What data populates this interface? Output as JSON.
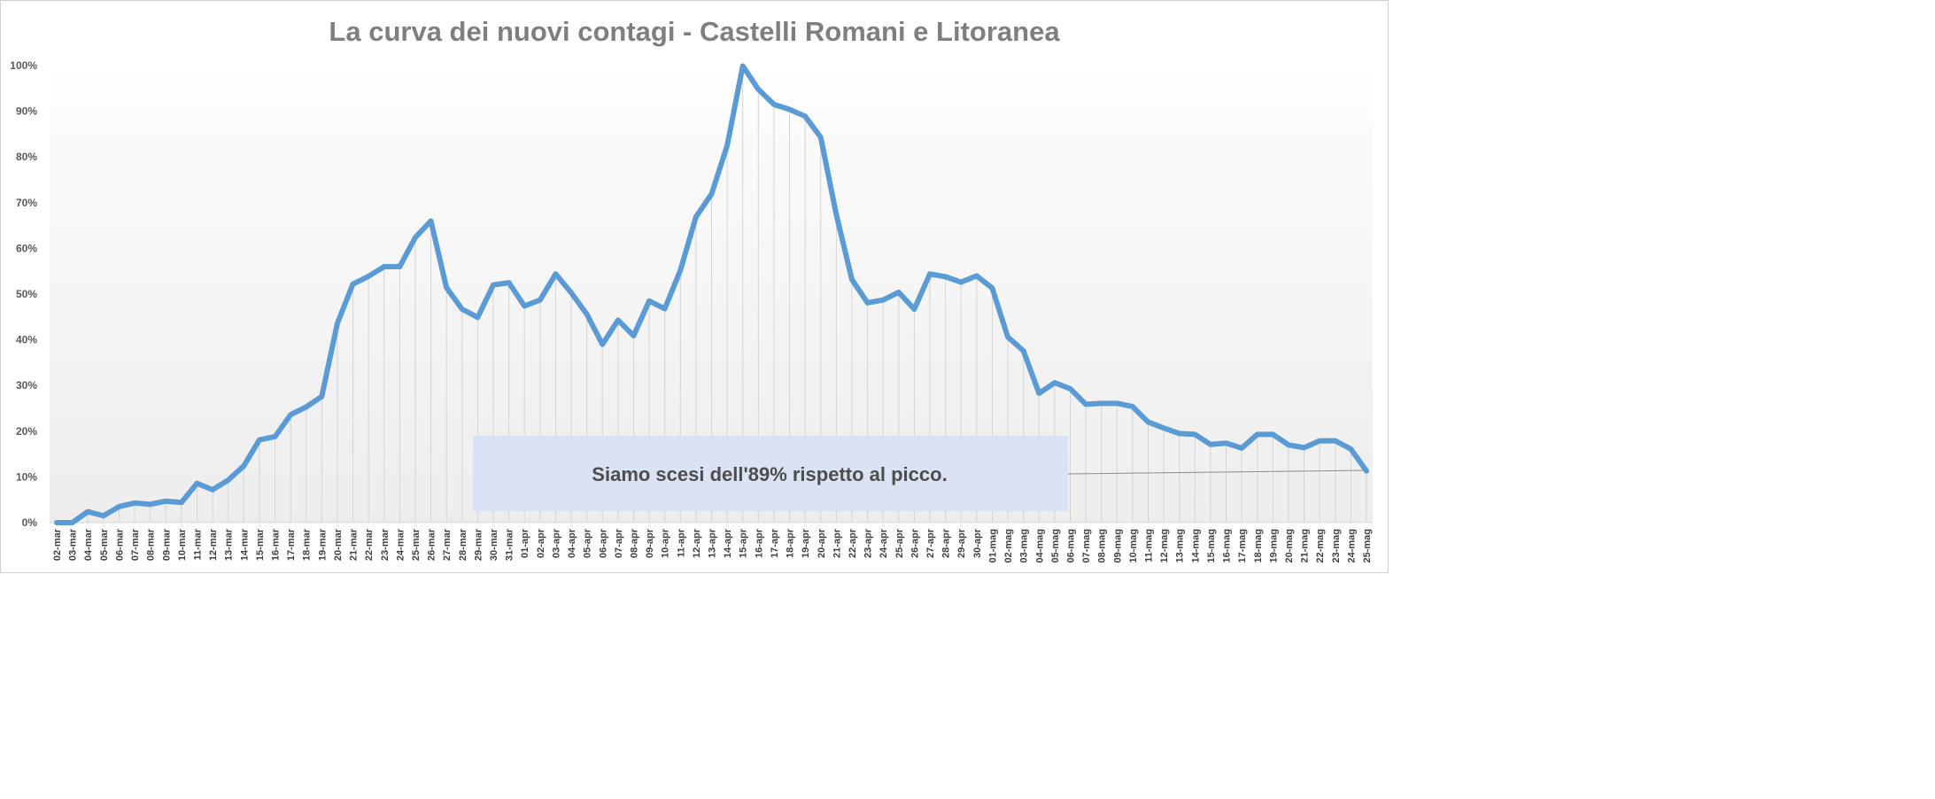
{
  "chart_data": {
    "type": "line",
    "title": "La curva dei nuovi contagi - Castelli Romani e Litoranea",
    "xlabel": "",
    "ylabel": "",
    "ylim": [
      0,
      100
    ],
    "yticks": [
      "0%",
      "10%",
      "20%",
      "30%",
      "40%",
      "50%",
      "60%",
      "70%",
      "80%",
      "90%",
      "100%"
    ],
    "grid": "vertical drop lines",
    "legend": "none",
    "line_color": "#5B9BD5",
    "categories": [
      "02-mar",
      "03-mar",
      "04-mar",
      "05-mar",
      "06-mar",
      "07-mar",
      "08-mar",
      "09-mar",
      "10-mar",
      "11-mar",
      "12-mar",
      "13-mar",
      "14-mar",
      "15-mar",
      "16-mar",
      "17-mar",
      "18-mar",
      "19-mar",
      "20-mar",
      "21-mar",
      "22-mar",
      "23-mar",
      "24-mar",
      "25-mar",
      "26-mar",
      "27-mar",
      "28-mar",
      "29-mar",
      "30-mar",
      "31-mar",
      "01-apr",
      "02-apr",
      "03-apr",
      "04-apr",
      "05-apr",
      "06-apr",
      "07-apr",
      "08-apr",
      "09-apr",
      "10-apr",
      "11-apr",
      "12-apr",
      "13-apr",
      "14-apr",
      "15-apr",
      "16-apr",
      "17-apr",
      "18-apr",
      "19-apr",
      "20-apr",
      "21-apr",
      "22-apr",
      "23-apr",
      "24-apr",
      "25-apr",
      "26-apr",
      "27-apr",
      "28-apr",
      "29-apr",
      "30-apr",
      "01-mag",
      "02-mag",
      "03-mag",
      "04-mag",
      "05-mag",
      "06-mag",
      "07-mag",
      "08-mag",
      "09-mag",
      "10-mag",
      "11-mag",
      "12-mag",
      "13-mag",
      "14-mag",
      "15-mag",
      "16-mag",
      "17-mag",
      "18-mag",
      "19-mag",
      "20-mag",
      "21-mag",
      "22-mag",
      "23-mag",
      "24-mag",
      "25-mag"
    ],
    "values": [
      0,
      0,
      2.4,
      1.5,
      3.5,
      4.3,
      4,
      4.7,
      4.4,
      8.6,
      7.2,
      9.3,
      12.4,
      18.1,
      18.8,
      23.6,
      25.3,
      27.6,
      43.6,
      52.2,
      53.9,
      56,
      56,
      62.4,
      66,
      51.4,
      46.7,
      44.9,
      52,
      52.5,
      47.4,
      48.7,
      54.4,
      50.3,
      45.6,
      39,
      44.3,
      40.9,
      48.5,
      46.8,
      55.2,
      66.9,
      71.9,
      82.5,
      99.9,
      94.8,
      91.5,
      90.4,
      88.9,
      84.3,
      67.4,
      53.2,
      48.1,
      48.7,
      50.4,
      46.7,
      54.4,
      53.8,
      52.6,
      54,
      51.3,
      40.6,
      37.6,
      28.3,
      30.6,
      29.3,
      25.9,
      26.1,
      26.1,
      25.4,
      22,
      20.7,
      19.5,
      19.3,
      17.1,
      17.4,
      16.3,
      19.3,
      19.3,
      17,
      16.4,
      17.9,
      17.9,
      16.1,
      11.3
    ]
  },
  "annotation": {
    "text": "Siamo scesi dell'89% rispetto al picco.",
    "fill": "#DAE3F3"
  }
}
